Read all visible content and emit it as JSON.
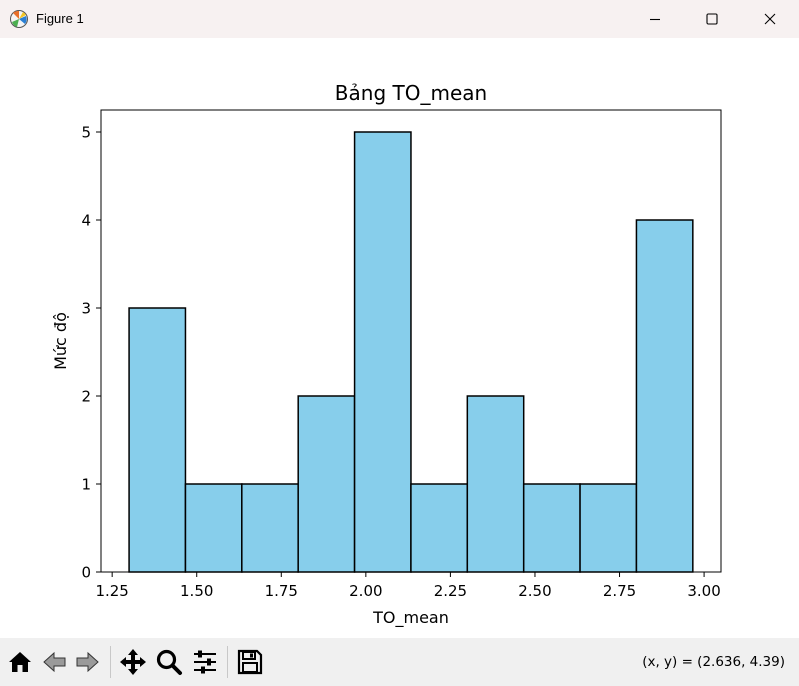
{
  "window": {
    "title": "Figure 1",
    "icons": {
      "app": "matplotlib-icon",
      "minimize": "minimize-icon",
      "maximize": "maximize-icon",
      "close": "close-icon"
    }
  },
  "toolbar": {
    "buttons": [
      "home-icon",
      "back-icon",
      "forward-icon",
      "pan-icon",
      "zoom-icon",
      "configure-subplots-icon",
      "save-icon"
    ],
    "coordinates": "(x, y) = (2.636, 4.39)"
  },
  "chart_data": {
    "type": "bar",
    "title": "Bảng TO_mean",
    "xlabel": "TO_mean",
    "ylabel": "Mức độ",
    "bin_edges": [
      1.3,
      1.4667,
      1.6333,
      1.8,
      1.9667,
      2.1333,
      2.3,
      2.4667,
      2.6333,
      2.8,
      2.9667
    ],
    "values": [
      3,
      1,
      1,
      2,
      5,
      1,
      2,
      1,
      1,
      4
    ],
    "xlim": [
      1.217,
      3.05
    ],
    "ylim": [
      0,
      5.25
    ],
    "xticks": [
      1.25,
      1.5,
      1.75,
      2.0,
      2.25,
      2.5,
      2.75,
      3.0
    ],
    "xtick_labels": [
      "1.25",
      "1.50",
      "1.75",
      "2.00",
      "2.25",
      "2.50",
      "2.75",
      "3.00"
    ],
    "yticks": [
      0,
      1,
      2,
      3,
      4,
      5
    ],
    "ytick_labels": [
      "0",
      "1",
      "2",
      "3",
      "4",
      "5"
    ],
    "bar_color": "#87ceeb",
    "edge_color": "#000000",
    "grid": false,
    "legend": false
  }
}
